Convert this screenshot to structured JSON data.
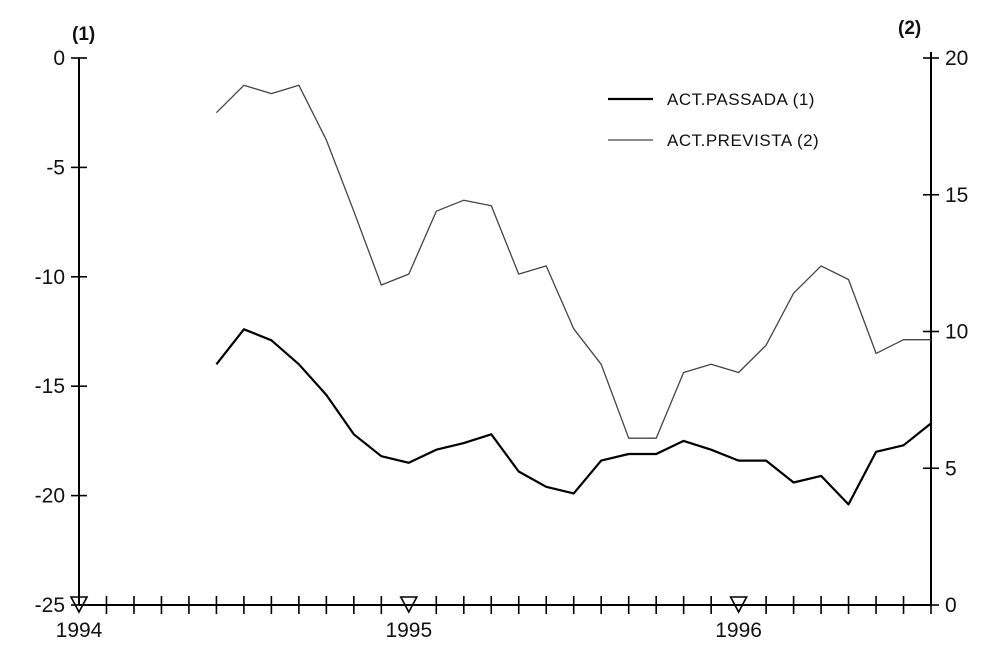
{
  "chart_data": {
    "type": "line",
    "left_axis": {
      "title": "(1)",
      "ylim": [
        -25,
        0
      ],
      "ticks": [
        0,
        -5,
        -10,
        -15,
        -20,
        -25
      ]
    },
    "right_axis": {
      "title": "(2)",
      "ylim": [
        0,
        20
      ],
      "ticks": [
        20,
        15,
        10,
        5,
        0
      ]
    },
    "x_axis": {
      "start": 1994.0,
      "end": 1996.5833,
      "year_labels": [
        {
          "label": "1994",
          "x": 1994.0
        },
        {
          "label": "1995",
          "x": 1995.0
        },
        {
          "label": "1996",
          "x": 1996.0
        }
      ],
      "month_ticks": [
        1994.0833,
        1994.1667,
        1994.25,
        1994.3333,
        1994.4167,
        1994.5,
        1994.5833,
        1994.6667,
        1994.75,
        1994.8333,
        1994.9167,
        1995.0833,
        1995.1667,
        1995.25,
        1995.3333,
        1995.4167,
        1995.5,
        1995.5833,
        1995.6667,
        1995.75,
        1995.8333,
        1995.9167,
        1996.0833,
        1996.1667,
        1996.25,
        1996.3333,
        1996.4167,
        1996.5,
        1996.5833
      ]
    },
    "legend": {
      "position": "top-right",
      "entries": [
        "ACT.PASSADA (1)",
        "ACT.PREVISTA (2)"
      ]
    },
    "series": [
      {
        "name": "ACT.PASSADA (1)",
        "axis": "left",
        "x": [
          1994.4167,
          1994.5,
          1994.5833,
          1994.6667,
          1994.75,
          1994.8333,
          1994.9167,
          1995.0,
          1995.0833,
          1995.1667,
          1995.25,
          1995.3333,
          1995.4167,
          1995.5,
          1995.5833,
          1995.6667,
          1995.75,
          1995.8333,
          1995.9167,
          1996.0,
          1996.0833,
          1996.1667,
          1996.25,
          1996.3333,
          1996.4167,
          1996.5,
          1996.5833
        ],
        "values": [
          -14.0,
          -12.4,
          -12.9,
          -14.0,
          -15.4,
          -17.2,
          -18.2,
          -18.5,
          -17.9,
          -17.6,
          -17.2,
          -18.9,
          -19.6,
          -19.9,
          -18.4,
          -18.1,
          -18.1,
          -17.5,
          -17.9,
          -18.4,
          -18.4,
          -19.4,
          -19.1,
          -20.4,
          -18.0,
          -17.7,
          -16.7
        ]
      },
      {
        "name": "ACT.PREVISTA (2)",
        "axis": "right",
        "x": [
          1994.4167,
          1994.5,
          1994.5833,
          1994.6667,
          1994.75,
          1994.8333,
          1994.9167,
          1995.0,
          1995.0833,
          1995.1667,
          1995.25,
          1995.3333,
          1995.4167,
          1995.5,
          1995.5833,
          1995.6667,
          1995.75,
          1995.8333,
          1995.9167,
          1996.0,
          1996.0833,
          1996.1667,
          1996.25,
          1996.3333,
          1996.4167,
          1996.5,
          1996.5833
        ],
        "values": [
          18.0,
          19.0,
          18.7,
          19.0,
          17.0,
          14.4,
          11.7,
          12.1,
          14.4,
          14.8,
          14.6,
          12.1,
          12.4,
          10.1,
          8.8,
          6.1,
          6.1,
          8.5,
          8.8,
          8.5,
          9.5,
          11.4,
          12.4,
          11.9,
          9.2,
          9.7,
          9.7
        ]
      }
    ],
    "markers": [
      1994.0,
      1995.0,
      1996.0
    ]
  }
}
